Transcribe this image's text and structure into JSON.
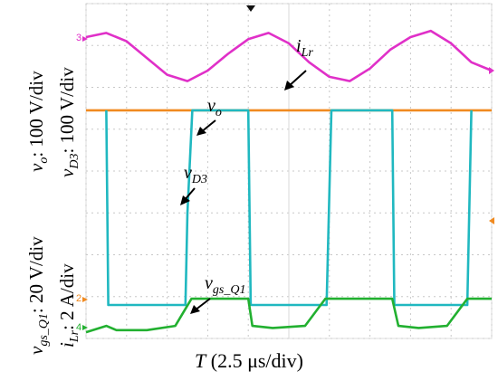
{
  "chart_data": {
    "type": "line",
    "xlabel_symbol": "T",
    "xlabel_rest": " (2.5 μs/div)",
    "left_labels": {
      "vo": {
        "sym": "v",
        "sub": "o",
        "rest": ": 100 V/div"
      },
      "vD3": {
        "sym": "v",
        "sub": "D3",
        "rest": ": 100 V/div"
      },
      "vgs": {
        "sym": "v",
        "sub": "gs_Q1",
        "rest": ": 20 V/div"
      },
      "iLr": {
        "sym": "i",
        "sub": "Lr",
        "rest": ": 2 A/div"
      }
    },
    "annotations": {
      "iLr": {
        "sym": "i",
        "sub": "Lr"
      },
      "vo": {
        "sym": "v",
        "sub": "o"
      },
      "vD3": {
        "sym": "v",
        "sub": "D3"
      },
      "vgs": {
        "sym": "v",
        "sub": "gs_Q1"
      }
    },
    "channel_markers": {
      "ch3": "3",
      "ch2": "2",
      "ch4": "4"
    },
    "x_divisions": 10,
    "y_divisions": 8,
    "series": [
      {
        "name": "i_Lr",
        "color": "#e030c8",
        "x": [
          0,
          0.5,
          1.0,
          1.5,
          2.0,
          2.5,
          3.0,
          3.5,
          4.0,
          4.5,
          5.0,
          5.5,
          6.0,
          6.5,
          7.0,
          7.5,
          8.0,
          8.5,
          9.0,
          9.5,
          10
        ],
        "y": [
          7.2,
          7.3,
          7.1,
          6.7,
          6.3,
          6.15,
          6.4,
          6.8,
          7.15,
          7.3,
          7.05,
          6.6,
          6.25,
          6.15,
          6.45,
          6.9,
          7.2,
          7.35,
          7.05,
          6.6,
          6.4
        ]
      },
      {
        "name": "v_o",
        "color": "#f08a20",
        "x": [
          0,
          10
        ],
        "y": [
          5.45,
          5.45
        ]
      },
      {
        "name": "v_D3",
        "color": "#20b8c0",
        "x": [
          0.5,
          0.55,
          0.75,
          2.45,
          2.5,
          2.62,
          4.0,
          4.06,
          4.2,
          5.85,
          5.93,
          6.05,
          7.55,
          7.6,
          7.75,
          9.35,
          9.4,
          9.5
        ],
        "y": [
          5.45,
          0.8,
          0.8,
          0.8,
          3.0,
          5.45,
          5.45,
          0.8,
          0.8,
          0.8,
          0.8,
          5.45,
          5.45,
          0.8,
          0.8,
          0.8,
          0.8,
          5.45
        ]
      },
      {
        "name": "v_gs_Q1",
        "color": "#22b030",
        "x": [
          0,
          0.5,
          0.75,
          1.5,
          2.2,
          2.6,
          3.1,
          3.5,
          4.0,
          4.1,
          4.6,
          5.4,
          5.9,
          6.2,
          6.7,
          7.1,
          7.55,
          7.7,
          8.2,
          8.9,
          9.4,
          9.7,
          10
        ],
        "y": [
          0.15,
          0.3,
          0.2,
          0.2,
          0.3,
          0.95,
          0.95,
          0.95,
          0.95,
          0.3,
          0.25,
          0.3,
          0.95,
          0.95,
          0.95,
          0.95,
          0.95,
          0.3,
          0.25,
          0.3,
          0.95,
          0.95,
          0.95
        ]
      }
    ],
    "xlim": [
      0,
      10
    ],
    "ylim": [
      0,
      8
    ],
    "grid": true
  }
}
